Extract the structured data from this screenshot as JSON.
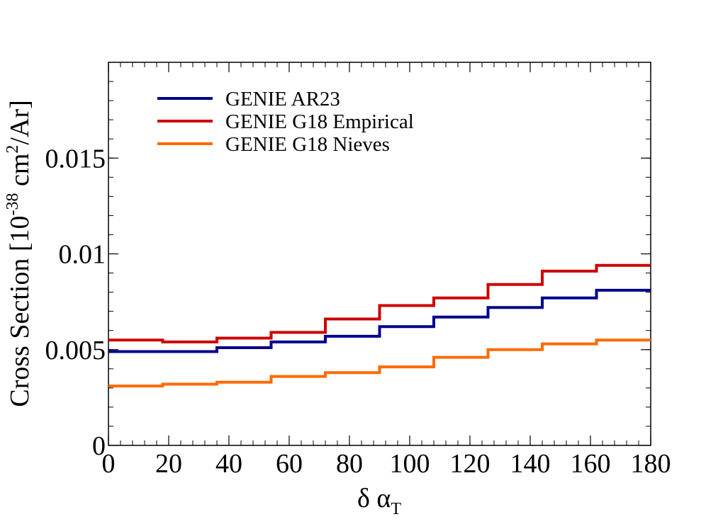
{
  "chart_data": {
    "type": "line",
    "step": true,
    "xlabel_main": "δ α",
    "xlabel_sub": "T",
    "ylabel_prefix": "Cross Section [10",
    "ylabel_exp1": "-38",
    "ylabel_mid": " cm",
    "ylabel_exp2": "2",
    "ylabel_suffix": "/Ar]",
    "xlim": [
      0,
      180
    ],
    "ylim": [
      0,
      0.02
    ],
    "xticks": [
      {
        "value": 0,
        "label": "0"
      },
      {
        "value": 20,
        "label": "20"
      },
      {
        "value": 40,
        "label": "40"
      },
      {
        "value": 60,
        "label": "60"
      },
      {
        "value": 80,
        "label": "80"
      },
      {
        "value": 100,
        "label": "100"
      },
      {
        "value": 120,
        "label": "120"
      },
      {
        "value": 140,
        "label": "140"
      },
      {
        "value": 160,
        "label": "160"
      },
      {
        "value": 180,
        "label": "180"
      }
    ],
    "yticks": [
      {
        "value": 0,
        "label": "0"
      },
      {
        "value": 0.005,
        "label": "0.005"
      },
      {
        "value": 0.01,
        "label": "0.01"
      },
      {
        "value": 0.015,
        "label": "0.015"
      }
    ],
    "bin_edges": [
      0,
      18,
      36,
      54,
      72,
      90,
      108,
      126,
      144,
      162,
      180
    ],
    "legend_position": "top-left",
    "series": [
      {
        "name": "GENIE AR23",
        "color": "#00008b",
        "values": [
          0.0049,
          0.0049,
          0.0051,
          0.0054,
          0.0057,
          0.0062,
          0.0067,
          0.0072,
          0.0077,
          0.0081
        ]
      },
      {
        "name": "GENIE G18 Empirical",
        "color": "#cc0000",
        "values": [
          0.0055,
          0.0054,
          0.0056,
          0.0059,
          0.0066,
          0.0073,
          0.0077,
          0.0084,
          0.0091,
          0.0094
        ]
      },
      {
        "name": "GENIE G18 Nieves",
        "color": "#ff6a00",
        "values": [
          0.0031,
          0.0032,
          0.0033,
          0.0036,
          0.0038,
          0.0041,
          0.0046,
          0.005,
          0.0053,
          0.0055
        ]
      }
    ]
  }
}
